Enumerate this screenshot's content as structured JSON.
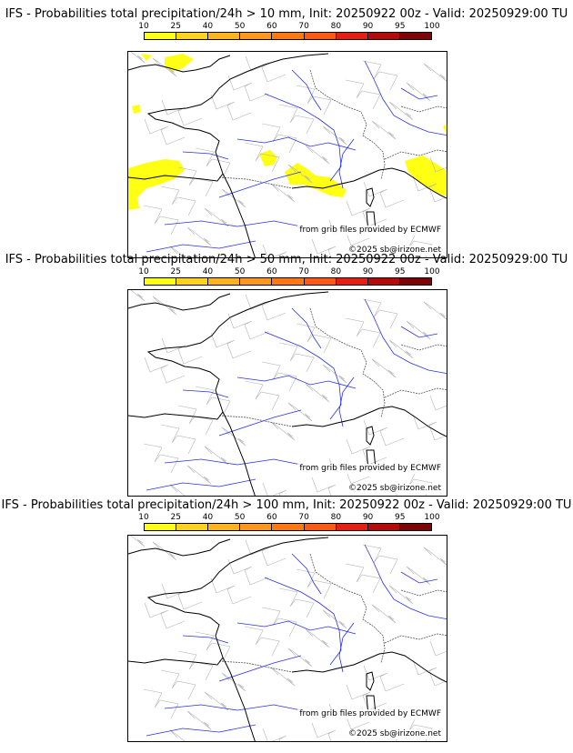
{
  "colorbar": {
    "ticks": [
      "10",
      "25",
      "40",
      "50",
      "60",
      "70",
      "80",
      "90",
      "95",
      "100"
    ],
    "colors": [
      "#ffff14",
      "#ffd21e",
      "#ffb41e",
      "#ff961e",
      "#ff7814",
      "#ff5a14",
      "#e61e14",
      "#b40a0a",
      "#7d0505"
    ]
  },
  "credits": {
    "source": "from grib files provided by ECMWF",
    "copyright": "©2025 sb@irizone.net"
  },
  "panels": [
    {
      "title": "IFS - Probabilities total precipitation/24h > 10 mm, Init: 20250922 00z - Valid: 20250929:00 TU",
      "threshold_mm": 10,
      "has_precip": true
    },
    {
      "title": "IFS - Probabilities total precipitation/24h > 50 mm, Init: 20250922 00z - Valid: 20250929:00 TU",
      "threshold_mm": 50,
      "has_precip": false
    },
    {
      "title": "IFS - Probabilities total precipitation/24h > 100 mm, Init: 20250922 00z - Valid: 20250929:00 TU",
      "threshold_mm": 100,
      "has_precip": false
    }
  ]
}
